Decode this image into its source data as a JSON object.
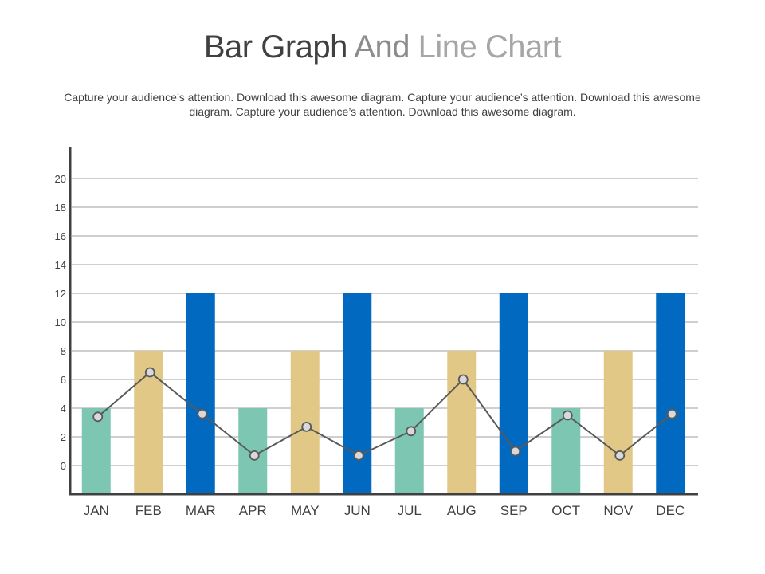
{
  "header": {
    "title_part1": "Bar Graph",
    "title_part2": "And",
    "title_part3": "Line Chart",
    "description": "Capture your audience’s attention. Download this awesome diagram. Capture your audience’s attention. Download this awesome diagram. Capture your audience’s attention. Download this awesome diagram."
  },
  "colors": {
    "teal": "#7dc6b2",
    "sand": "#e2c887",
    "blue": "#0269c1",
    "line": "#595959",
    "marker_fill": "#d9d9d9",
    "grid": "#bfbfbf",
    "axis": "#404040",
    "label": "#404040"
  },
  "chart_data": {
    "type": "bar",
    "categories": [
      "JAN",
      "FEB",
      "MAR",
      "APR",
      "MAY",
      "JUN",
      "JUL",
      "AUG",
      "SEP",
      "OCT",
      "NOV",
      "DEC"
    ],
    "y_ticks": [
      "0",
      "2",
      "4",
      "6",
      "8",
      "10",
      "12",
      "14",
      "16",
      "18",
      "20"
    ],
    "ylim": [
      -2,
      22
    ],
    "grid": true,
    "series": [
      {
        "kind": "bar",
        "values": [
          4,
          8,
          12,
          4,
          8,
          12,
          4,
          8,
          12,
          4,
          8,
          12
        ],
        "bar_colors": [
          "teal",
          "sand",
          "blue",
          "teal",
          "sand",
          "blue",
          "teal",
          "sand",
          "blue",
          "teal",
          "sand",
          "blue"
        ]
      },
      {
        "kind": "line",
        "values": [
          3.4,
          6.5,
          3.6,
          0.7,
          2.7,
          0.7,
          2.4,
          6.0,
          1.0,
          3.5,
          0.7,
          3.6
        ]
      }
    ]
  }
}
